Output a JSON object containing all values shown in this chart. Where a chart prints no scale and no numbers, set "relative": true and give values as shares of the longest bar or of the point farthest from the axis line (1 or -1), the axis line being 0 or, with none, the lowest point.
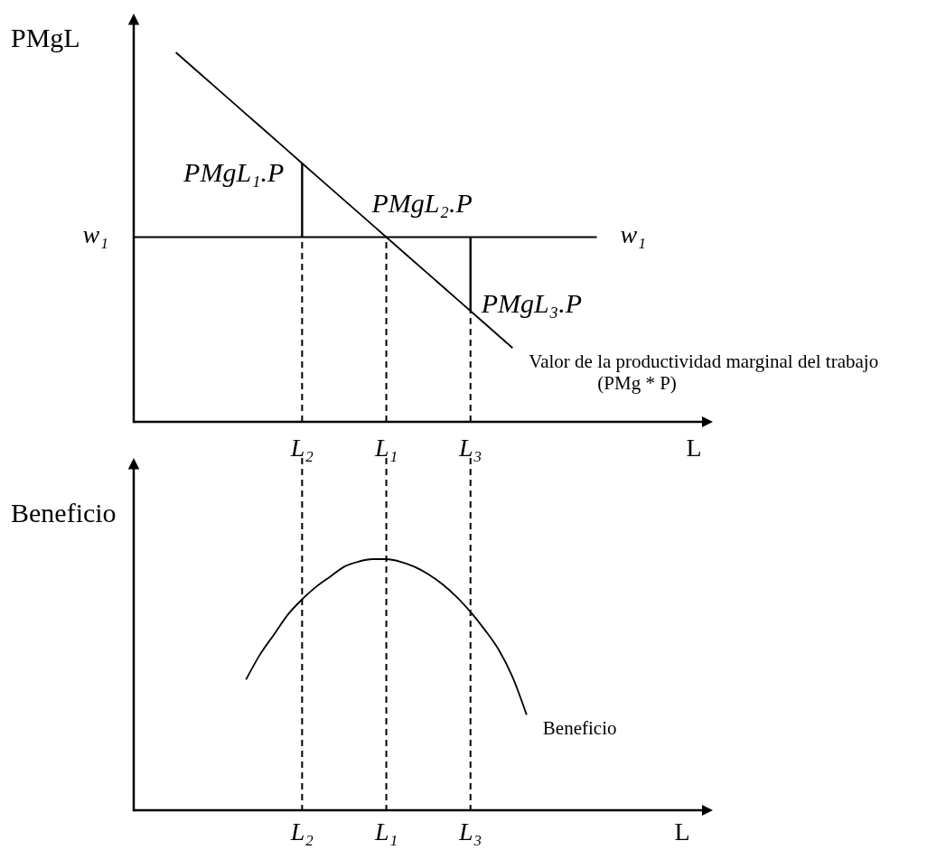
{
  "chart_data": [
    {
      "type": "line",
      "relative": true,
      "ylabel": "PMgL",
      "xlabel": "L",
      "categories": [
        null,
        null,
        null,
        null,
        "L₂",
        null,
        "L₁",
        null,
        "L₃",
        null,
        null,
        null,
        null,
        null
      ],
      "series": [
        {
          "name": "Valor de la productividad marginal del trabajo (PMg * P)",
          "color": "#000000",
          "values": [
            null,
            1.0,
            0.9,
            0.8,
            0.7,
            0.6,
            0.5,
            0.4,
            0.3,
            0.2,
            null,
            null,
            null,
            null
          ]
        },
        {
          "name": "w₁",
          "color": "#000000",
          "values": [
            0.5,
            0.5,
            0.5,
            0.5,
            0.5,
            0.5,
            0.5,
            0.5,
            0.5,
            0.5,
            0.5,
            0.5,
            null,
            null
          ]
        },
        {
          "color": "#000000",
          "x": [
            "L₂",
            "L₂"
          ],
          "values": [
            0.5,
            0.7
          ]
        },
        {
          "color": "#000000",
          "x": [
            "L₃",
            "L₃"
          ],
          "values": [
            0.5,
            0.3
          ]
        },
        {
          "color": "#000000",
          "x": [
            "L₂",
            "L₂"
          ],
          "values": [
            0,
            0.5
          ],
          "line_style": "dashed"
        },
        {
          "color": "#000000",
          "x": [
            "L₁",
            "L₁"
          ],
          "values": [
            0,
            0.5
          ],
          "line_style": "dashed"
        },
        {
          "color": "#000000",
          "x": [
            "L₃",
            "L₃"
          ],
          "values": [
            0,
            0.3
          ],
          "line_style": "dashed"
        }
      ],
      "annotations": [
        {
          "text": "PMgL₁.P",
          "x": "L₂",
          "y": 0.7
        },
        {
          "text": "PMgL₂.P",
          "x": "L₁",
          "y": 0.5
        },
        {
          "text": "PMgL₃.P",
          "x": "L₃",
          "y": 0.3
        }
      ]
    },
    {
      "type": "line",
      "relative": true,
      "ylabel": "Beneficio",
      "xlabel": "L",
      "categories": [
        null,
        null,
        null,
        null,
        null,
        null,
        null,
        null,
        null,
        null,
        null,
        null,
        "L₂",
        null,
        null,
        null,
        null,
        null,
        "L₁",
        null,
        null,
        null,
        null,
        null,
        "L₃",
        null,
        null,
        null,
        null,
        null,
        null,
        null,
        null,
        null,
        null,
        null,
        null,
        null,
        null,
        null
      ],
      "series": [
        {
          "name": "Beneficio",
          "color": "#000000",
          "values": [
            null,
            null,
            null,
            null,
            null,
            null,
            null,
            null,
            0.52,
            0.62,
            0.7,
            0.78,
            0.84,
            0.89,
            0.93,
            0.97,
            0.99,
            1.0,
            1.0,
            0.99,
            0.97,
            0.94,
            0.9,
            0.85,
            0.79,
            0.72,
            0.64,
            0.53,
            0.38,
            null,
            null,
            null,
            null,
            null,
            null,
            null,
            null,
            null,
            null,
            null
          ]
        }
      ],
      "ref_lines": [
        {
          "axis": "x",
          "value": "L₂",
          "line_style": "dashed",
          "color": "#000000"
        },
        {
          "axis": "x",
          "value": "L₁",
          "line_style": "dashed",
          "color": "#000000"
        },
        {
          "axis": "x",
          "value": "L₃",
          "line_style": "dashed",
          "color": "#000000"
        }
      ]
    }
  ]
}
